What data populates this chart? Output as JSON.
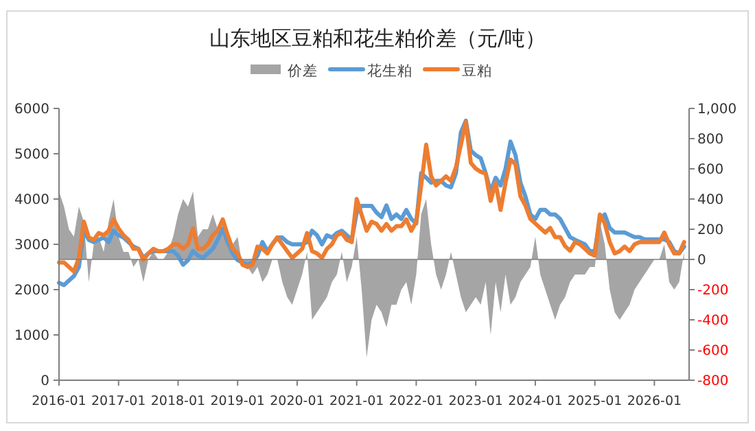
{
  "chart_data": {
    "type": "line",
    "title": "山东地区豆粕和花生粕价差（元/吨）",
    "x": [
      "2016-01",
      "2016-02",
      "2016-03",
      "2016-04",
      "2016-05",
      "2016-06",
      "2016-07",
      "2016-08",
      "2016-09",
      "2016-10",
      "2016-11",
      "2016-12",
      "2017-01",
      "2017-02",
      "2017-03",
      "2017-04",
      "2017-05",
      "2017-06",
      "2017-07",
      "2017-08",
      "2017-09",
      "2017-10",
      "2017-11",
      "2017-12",
      "2018-01",
      "2018-02",
      "2018-03",
      "2018-04",
      "2018-05",
      "2018-06",
      "2018-07",
      "2018-08",
      "2018-09",
      "2018-10",
      "2018-11",
      "2018-12",
      "2019-01",
      "2019-02",
      "2019-03",
      "2019-04",
      "2019-05",
      "2019-06",
      "2019-07",
      "2019-08",
      "2019-09",
      "2019-10",
      "2019-11",
      "2019-12",
      "2020-01",
      "2020-02",
      "2020-03",
      "2020-04",
      "2020-05",
      "2020-06",
      "2020-07",
      "2020-08",
      "2020-09",
      "2020-10",
      "2020-11",
      "2020-12",
      "2021-01",
      "2021-02",
      "2021-03",
      "2021-04",
      "2021-05",
      "2021-06",
      "2021-07",
      "2021-08",
      "2021-09",
      "2021-10",
      "2021-11",
      "2021-12",
      "2022-01",
      "2022-02",
      "2022-03",
      "2022-04",
      "2022-05",
      "2022-06",
      "2022-07",
      "2022-08",
      "2022-09",
      "2022-10",
      "2022-11",
      "2022-12",
      "2023-01",
      "2023-02",
      "2023-03",
      "2023-04",
      "2023-05",
      "2023-06",
      "2023-07",
      "2023-08",
      "2023-09",
      "2023-10",
      "2023-11",
      "2023-12",
      "2024-01",
      "2024-02",
      "2024-03",
      "2024-04",
      "2024-05",
      "2024-06",
      "2024-07",
      "2024-08",
      "2024-09",
      "2024-10",
      "2024-11",
      "2024-12",
      "2025-01",
      "2025-02",
      "2025-03",
      "2025-04",
      "2025-05",
      "2025-06",
      "2025-07",
      "2025-08",
      "2025-09",
      "2025-10",
      "2025-11",
      "2025-12",
      "2026-01",
      "2026-02",
      "2026-03",
      "2026-04",
      "2026-05",
      "2026-06",
      "2026-07"
    ],
    "series": [
      {
        "name": "价差",
        "type": "area",
        "axis": "y2",
        "color": "#a5a5a5",
        "values": [
          450,
          350,
          200,
          150,
          350,
          250,
          -150,
          100,
          150,
          50,
          250,
          400,
          150,
          50,
          50,
          -50,
          0,
          -150,
          0,
          50,
          0,
          0,
          50,
          150,
          300,
          400,
          350,
          450,
          150,
          200,
          200,
          300,
          200,
          200,
          150,
          100,
          150,
          -50,
          -50,
          -100,
          -50,
          -150,
          -100,
          0,
          0,
          -150,
          -250,
          -300,
          -200,
          -100,
          50,
          -400,
          -350,
          -300,
          -250,
          -150,
          -100,
          50,
          -150,
          -50,
          150,
          -200,
          -650,
          -400,
          -300,
          -350,
          -450,
          -300,
          -300,
          -200,
          -150,
          -300,
          -100,
          300,
          400,
          100,
          -100,
          -200,
          -100,
          50,
          -100,
          -250,
          -350,
          -300,
          -250,
          -300,
          -150,
          -500,
          -150,
          -350,
          -100,
          -300,
          -250,
          -150,
          -100,
          -50,
          150,
          -100,
          -200,
          -300,
          -400,
          -300,
          -250,
          -150,
          -100,
          -100,
          -100,
          -50,
          -50,
          250,
          100,
          -200,
          -350,
          -400,
          -350,
          -300,
          -200,
          -150,
          -100,
          -50,
          0,
          0,
          100,
          -150,
          -200,
          -150,
          50
        ]
      },
      {
        "name": "花生粕",
        "color": "#5b9bd5",
        "values": [
          2150,
          2100,
          2200,
          2300,
          2500,
          3300,
          3100,
          3050,
          3100,
          3150,
          3050,
          3300,
          3200,
          3150,
          3050,
          2950,
          2900,
          2700,
          2800,
          2850,
          2850,
          2850,
          2850,
          2850,
          2750,
          2550,
          2650,
          2850,
          2750,
          2700,
          2800,
          2900,
          3100,
          3350,
          3050,
          2800,
          2650,
          2600,
          2550,
          2600,
          2750,
          3050,
          2850,
          3000,
          3150,
          3150,
          3050,
          3000,
          3000,
          3000,
          3050,
          3300,
          3200,
          3000,
          3200,
          3150,
          3250,
          3300,
          3200,
          3100,
          3700,
          3850,
          3850,
          3850,
          3700,
          3600,
          3860,
          3560,
          3660,
          3560,
          3760,
          3560,
          3460,
          4570,
          4470,
          4360,
          4400,
          4400,
          4300,
          4260,
          4570,
          5470,
          5730,
          5070,
          4970,
          4900,
          4570,
          4160,
          4470,
          4300,
          4670,
          5270,
          4970,
          4360,
          4060,
          3660,
          3560,
          3760,
          3760,
          3660,
          3660,
          3560,
          3360,
          3160,
          3100,
          3050,
          3000,
          2850,
          2850,
          3560,
          3660,
          3360,
          3260,
          3260,
          3260,
          3210,
          3160,
          3160,
          3110,
          3110,
          3110,
          3110,
          3110,
          3050,
          2850,
          2800,
          2950
        ]
      },
      {
        "name": "豆粕",
        "color": "#ed7d31",
        "values": [
          2600,
          2600,
          2500,
          2400,
          2700,
          3500,
          3150,
          3100,
          3250,
          3200,
          3300,
          3550,
          3350,
          3200,
          3100,
          2900,
          2900,
          2650,
          2800,
          2900,
          2850,
          2850,
          2900,
          3000,
          3000,
          2900,
          3000,
          3350,
          2900,
          2900,
          3000,
          3200,
          3300,
          3550,
          3200,
          2900,
          2800,
          2550,
          2500,
          2550,
          2950,
          2900,
          2800,
          3000,
          3150,
          3000,
          2850,
          2700,
          2800,
          2900,
          3250,
          2850,
          2800,
          2700,
          2900,
          3000,
          3200,
          3250,
          3100,
          3050,
          4000,
          3650,
          3300,
          3500,
          3450,
          3300,
          3450,
          3300,
          3400,
          3400,
          3550,
          3300,
          3500,
          4300,
          5200,
          4500,
          4300,
          4400,
          4500,
          4400,
          4700,
          5200,
          5700,
          4800,
          4670,
          4600,
          4560,
          3960,
          4360,
          3760,
          4360,
          4870,
          4770,
          4060,
          3860,
          3560,
          3460,
          3360,
          3260,
          3360,
          3160,
          3160,
          2960,
          2860,
          3050,
          3000,
          2900,
          2800,
          2750,
          3660,
          3460,
          3050,
          2800,
          2850,
          2950,
          2850,
          3000,
          3050,
          3050,
          3050,
          3050,
          3050,
          3260,
          3000,
          2800,
          2800,
          3050
        ]
      }
    ],
    "xlim": [
      "2016-01",
      "2026-08"
    ],
    "xticks": [
      "2016-01",
      "2017-01",
      "2018-01",
      "2019-01",
      "2020-01",
      "2021-01",
      "2022-01",
      "2023-01",
      "2024-01",
      "2025-01",
      "2026-01"
    ],
    "ylim": [
      0,
      6000
    ],
    "yticks": [
      0,
      1000,
      2000,
      3000,
      4000,
      5000,
      6000
    ],
    "y2lim": [
      -800,
      1000
    ],
    "y2ticks": [
      -800,
      -600,
      -400,
      -200,
      0,
      200,
      400,
      600,
      800,
      {
        "value": 1000,
        "label": "1,000"
      }
    ],
    "ref_lines": [
      {
        "axis": "y2",
        "value": 0,
        "color": "#7f7f7f"
      }
    ],
    "legend": "top",
    "grid": false,
    "marker": "none",
    "line_style": "solid"
  }
}
